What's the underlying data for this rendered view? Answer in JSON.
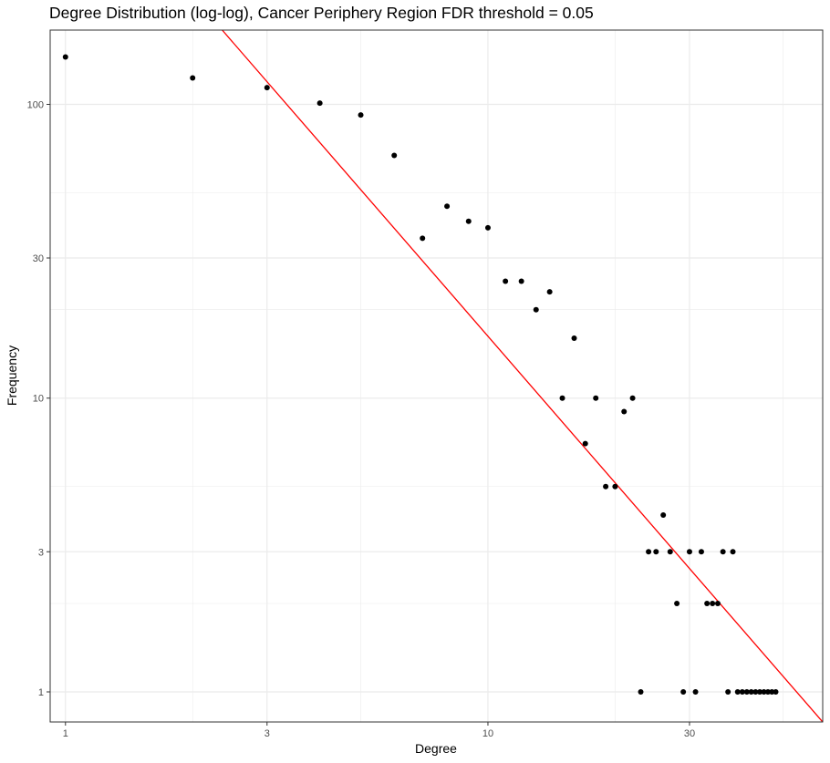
{
  "chart_data": {
    "type": "scatter",
    "title": "Degree Distribution (log-log), Cancer Periphery Region FDR threshold = 0.05",
    "xlabel": "Degree",
    "ylabel": "Frequency",
    "x_scale": "log10",
    "y_scale": "log10",
    "xlim": [
      0.92,
      62
    ],
    "ylim": [
      0.79,
      179
    ],
    "x_ticks": [
      {
        "value": 1,
        "label": "1"
      },
      {
        "value": 3,
        "label": "3"
      },
      {
        "value": 10,
        "label": "10"
      },
      {
        "value": 30,
        "label": "30"
      }
    ],
    "y_ticks": [
      {
        "value": 1,
        "label": "1"
      },
      {
        "value": 3,
        "label": "3"
      },
      {
        "value": 10,
        "label": "10"
      },
      {
        "value": 30,
        "label": "30"
      },
      {
        "value": 100,
        "label": "100"
      }
    ],
    "x_minor_gridlines": [
      2,
      5,
      20,
      50
    ],
    "y_minor_gridlines": [
      2,
      5,
      20,
      50
    ],
    "grid": true,
    "points": [
      {
        "x": 1,
        "y": 145
      },
      {
        "x": 2,
        "y": 123
      },
      {
        "x": 3,
        "y": 114
      },
      {
        "x": 4,
        "y": 101
      },
      {
        "x": 5,
        "y": 92
      },
      {
        "x": 6,
        "y": 67
      },
      {
        "x": 7,
        "y": 35
      },
      {
        "x": 8,
        "y": 45
      },
      {
        "x": 9,
        "y": 40
      },
      {
        "x": 10,
        "y": 38
      },
      {
        "x": 11,
        "y": 25
      },
      {
        "x": 12,
        "y": 25
      },
      {
        "x": 13,
        "y": 20
      },
      {
        "x": 14,
        "y": 23
      },
      {
        "x": 15,
        "y": 10
      },
      {
        "x": 16,
        "y": 16
      },
      {
        "x": 17,
        "y": 7
      },
      {
        "x": 18,
        "y": 10
      },
      {
        "x": 19,
        "y": 5
      },
      {
        "x": 20,
        "y": 5
      },
      {
        "x": 21,
        "y": 9
      },
      {
        "x": 22,
        "y": 10
      },
      {
        "x": 23,
        "y": 1
      },
      {
        "x": 24,
        "y": 3
      },
      {
        "x": 25,
        "y": 3
      },
      {
        "x": 26,
        "y": 4
      },
      {
        "x": 27,
        "y": 3
      },
      {
        "x": 28,
        "y": 2
      },
      {
        "x": 29,
        "y": 1
      },
      {
        "x": 30,
        "y": 3
      },
      {
        "x": 31,
        "y": 1
      },
      {
        "x": 32,
        "y": 3
      },
      {
        "x": 33,
        "y": 2
      },
      {
        "x": 34,
        "y": 2
      },
      {
        "x": 35,
        "y": 2
      },
      {
        "x": 36,
        "y": 3
      },
      {
        "x": 37,
        "y": 1
      },
      {
        "x": 38,
        "y": 3
      },
      {
        "x": 39,
        "y": 1
      },
      {
        "x": 40,
        "y": 1
      },
      {
        "x": 41,
        "y": 1
      },
      {
        "x": 42,
        "y": 1
      },
      {
        "x": 43,
        "y": 1
      },
      {
        "x": 44,
        "y": 1
      },
      {
        "x": 45,
        "y": 1
      },
      {
        "x": 46,
        "y": 1
      },
      {
        "x": 47,
        "y": 1
      },
      {
        "x": 48,
        "y": 1
      }
    ],
    "fit_line": {
      "color": "#ff0000",
      "x": [
        2.35,
        62
      ],
      "y": [
        179,
        0.79
      ]
    },
    "colors": {
      "points": "#000000",
      "grid": "#ebebeb",
      "panel_border": "#333333",
      "background": "#ffffff"
    }
  }
}
